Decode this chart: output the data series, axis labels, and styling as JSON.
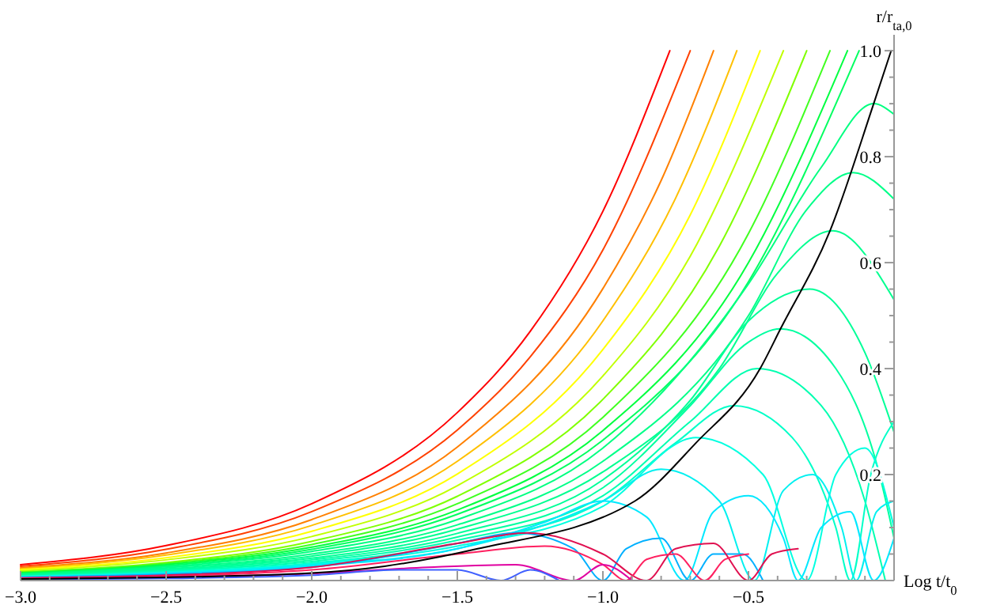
{
  "chart_data": {
    "type": "line",
    "xlabel": "Log t/t$_{0}$",
    "ylabel": "r/r$_{ta,0}$",
    "xlim": [
      -3.0,
      0.0
    ],
    "ylim": [
      0,
      1.03
    ],
    "xticks": [
      {
        "value": -3.0,
        "label": "−3.0"
      },
      {
        "value": -2.5,
        "label": "−2.5"
      },
      {
        "value": -2.0,
        "label": "−2.0"
      },
      {
        "value": -1.5,
        "label": "−1.5"
      },
      {
        "value": -1.0,
        "label": "−1.0"
      },
      {
        "value": -0.5,
        "label": "−0.5"
      },
      {
        "value": -2.9,
        "label": null
      },
      {
        "value": -2.8,
        "label": null
      },
      {
        "value": -2.7,
        "label": null
      },
      {
        "value": -2.6,
        "label": null
      },
      {
        "value": -2.4,
        "label": null
      },
      {
        "value": -2.3,
        "label": null
      },
      {
        "value": -2.2,
        "label": null
      },
      {
        "value": -2.1,
        "label": null
      },
      {
        "value": -1.9,
        "label": null
      },
      {
        "value": -1.8,
        "label": null
      },
      {
        "value": -1.7,
        "label": null
      },
      {
        "value": -1.6,
        "label": null
      },
      {
        "value": -1.4,
        "label": null
      },
      {
        "value": -1.3,
        "label": null
      },
      {
        "value": -1.2,
        "label": null
      },
      {
        "value": -1.1,
        "label": null
      },
      {
        "value": -0.9,
        "label": null
      },
      {
        "value": -0.8,
        "label": null
      },
      {
        "value": -0.7,
        "label": null
      },
      {
        "value": -0.6,
        "label": null
      },
      {
        "value": -0.4,
        "label": null
      },
      {
        "value": -0.3,
        "label": null
      },
      {
        "value": -0.2,
        "label": null
      },
      {
        "value": -0.1,
        "label": null
      }
    ],
    "yticks": [
      {
        "value": 0.2,
        "label": "0.2"
      },
      {
        "value": 0.4,
        "label": "0.4"
      },
      {
        "value": 0.6,
        "label": "0.6"
      },
      {
        "value": 0.8,
        "label": "0.8"
      },
      {
        "value": 1.0,
        "label": "1.0"
      },
      {
        "value": 0.05,
        "label": null
      },
      {
        "value": 0.1,
        "label": null
      },
      {
        "value": 0.15,
        "label": null
      },
      {
        "value": 0.25,
        "label": null
      },
      {
        "value": 0.3,
        "label": null
      },
      {
        "value": 0.35,
        "label": null
      },
      {
        "value": 0.45,
        "label": null
      },
      {
        "value": 0.5,
        "label": null
      },
      {
        "value": 0.55,
        "label": null
      },
      {
        "value": 0.65,
        "label": null
      },
      {
        "value": 0.7,
        "label": null
      },
      {
        "value": 0.75,
        "label": null
      },
      {
        "value": 0.85,
        "label": null
      },
      {
        "value": 0.9,
        "label": null
      },
      {
        "value": 0.95,
        "label": null
      }
    ],
    "marker": "none",
    "line_style": "solid",
    "grid": false,
    "series": [
      {
        "color": "#ff0000",
        "x": [
          -3,
          -2.5,
          -2,
          -1.5,
          -1.25,
          -1,
          -0.77
        ],
        "values": [
          0.03,
          0.066,
          0.145,
          0.317,
          0.47,
          0.697,
          1.0
        ]
      },
      {
        "color": "#ff4000",
        "x": [
          -3,
          -2.5,
          -2,
          -1.5,
          -1.25,
          -1,
          -0.7
        ],
        "values": [
          0.027,
          0.059,
          0.13,
          0.284,
          0.422,
          0.624,
          1.0
        ]
      },
      {
        "color": "#ff8000",
        "x": [
          -3,
          -2.5,
          -2,
          -1.5,
          -1,
          -0.8,
          -0.62
        ],
        "values": [
          0.024,
          0.052,
          0.115,
          0.252,
          0.551,
          0.755,
          1.0
        ]
      },
      {
        "color": "#ffc000",
        "x": [
          -3,
          -2.5,
          -2,
          -1.5,
          -1,
          -0.75,
          -0.54
        ],
        "values": [
          0.022,
          0.048,
          0.104,
          0.225,
          0.49,
          0.722,
          1.0
        ]
      },
      {
        "color": "#ffff00",
        "x": [
          -3,
          -2.5,
          -2,
          -1.5,
          -1,
          -0.7,
          -0.46
        ],
        "values": [
          0.02,
          0.043,
          0.093,
          0.201,
          0.436,
          0.69,
          1.0
        ]
      },
      {
        "color": "#c0ff00",
        "x": [
          -3,
          -2.5,
          -2,
          -1.5,
          -1,
          -0.7,
          -0.38
        ],
        "values": [
          0.018,
          0.039,
          0.083,
          0.179,
          0.386,
          0.612,
          1.0
        ]
      },
      {
        "color": "#80ff00",
        "x": [
          -3,
          -2.5,
          -2,
          -1.5,
          -1,
          -0.6,
          -0.3
        ],
        "values": [
          0.016,
          0.034,
          0.074,
          0.159,
          0.342,
          0.631,
          1.0
        ]
      },
      {
        "color": "#40ff20",
        "x": [
          -3,
          -2.5,
          -2,
          -1.5,
          -1,
          -0.5,
          -0.22
        ],
        "values": [
          0.015,
          0.032,
          0.068,
          0.145,
          0.308,
          0.655,
          1.0
        ]
      },
      {
        "color": "#00ff40",
        "x": [
          -3,
          -2.5,
          -2,
          -1.5,
          -1,
          -0.5,
          -0.16
        ],
        "values": [
          0.014,
          0.03,
          0.063,
          0.133,
          0.283,
          0.6,
          1.0
        ]
      },
      {
        "color": "#00ff60",
        "x": [
          -3,
          -2.5,
          -2,
          -1.5,
          -1,
          -0.5,
          -0.12
        ],
        "values": [
          0.013,
          0.028,
          0.059,
          0.125,
          0.265,
          0.564,
          1.0
        ]
      },
      {
        "color": "#00ff80",
        "x": [
          -3,
          -2.5,
          -2,
          -1.5,
          -1,
          -0.5,
          -0.25,
          -0.07,
          0
        ],
        "values": [
          0.012,
          0.026,
          0.055,
          0.115,
          0.25,
          0.56,
          0.78,
          0.9,
          0.88
        ]
      },
      {
        "color": "#00ff88",
        "x": [
          -3,
          -2.5,
          -2,
          -1.5,
          -1,
          -0.5,
          -0.3,
          -0.14,
          0
        ],
        "values": [
          0.011,
          0.024,
          0.05,
          0.105,
          0.225,
          0.5,
          0.7,
          0.77,
          0.72
        ]
      },
      {
        "color": "#00ff90",
        "x": [
          -3,
          -2.5,
          -2,
          -1.5,
          -1,
          -0.6,
          -0.4,
          -0.21,
          0
        ],
        "values": [
          0.01,
          0.022,
          0.046,
          0.097,
          0.205,
          0.4,
          0.58,
          0.66,
          0.53
        ]
      },
      {
        "color": "#00ff98",
        "x": [
          -3,
          -2.5,
          -2,
          -1.5,
          -1,
          -0.7,
          -0.5,
          -0.29,
          -0.1,
          0
        ],
        "values": [
          0.009,
          0.02,
          0.042,
          0.089,
          0.19,
          0.34,
          0.49,
          0.55,
          0.43,
          0.28
        ]
      },
      {
        "color": "#00ffa0",
        "x": [
          -3,
          -2.5,
          -2,
          -1.5,
          -1,
          -0.7,
          -0.5,
          -0.39,
          -0.2,
          -0.05,
          0
        ],
        "values": [
          0.009,
          0.019,
          0.039,
          0.082,
          0.175,
          0.33,
          0.45,
          0.475,
          0.4,
          0.2,
          0.08
        ]
      },
      {
        "color": "#00ffb0",
        "x": [
          -3,
          -2.5,
          -2,
          -1.5,
          -1,
          -0.7,
          -0.47,
          -0.25,
          -0.1,
          -0.03
        ],
        "values": [
          0.008,
          0.018,
          0.036,
          0.076,
          0.16,
          0.3,
          0.4,
          0.33,
          0.15,
          0
        ]
      },
      {
        "color": "#00ffc8",
        "x": [
          -3,
          -2.5,
          -2,
          -1.5,
          -1,
          -0.75,
          -0.55,
          -0.35,
          -0.2,
          -0.15,
          -0.08,
          0
        ],
        "values": [
          0.008,
          0.016,
          0.033,
          0.07,
          0.15,
          0.26,
          0.33,
          0.27,
          0.1,
          0,
          0.2,
          0.3
        ]
      },
      {
        "color": "#00ffe0",
        "x": [
          -3,
          -2.5,
          -2,
          -1.5,
          -1,
          -0.68,
          -0.45,
          -0.3,
          -0.2,
          -0.1,
          0
        ],
        "values": [
          0.007,
          0.015,
          0.031,
          0.065,
          0.14,
          0.27,
          0.2,
          0,
          0.2,
          0.25,
          0.1
        ]
      },
      {
        "color": "#00f0f0",
        "x": [
          -3,
          -2.5,
          -2,
          -1.5,
          -1,
          -0.8,
          -0.6,
          -0.48,
          -0.38,
          -0.28,
          -0.18,
          -0.13,
          -0.06,
          0
        ],
        "values": [
          0.007,
          0.014,
          0.029,
          0.06,
          0.15,
          0.21,
          0.15,
          0,
          0.17,
          0.2,
          0.1,
          0,
          0.13,
          0.15
        ]
      },
      {
        "color": "#00e8ff",
        "x": [
          -3,
          -2.5,
          -2,
          -1.5,
          -1.2,
          -1,
          -0.85,
          -0.72,
          -0.62,
          -0.5,
          -0.38,
          -0.33,
          -0.25,
          -0.15,
          -0.07,
          0
        ],
        "values": [
          0.006,
          0.013,
          0.027,
          0.06,
          0.11,
          0.15,
          0.12,
          0,
          0.13,
          0.16,
          0.08,
          0,
          0.1,
          0.13,
          0,
          0.08
        ]
      },
      {
        "color": "#00b0ff",
        "x": [
          -3,
          -2.5,
          -2,
          -1.5,
          -1.3,
          -1.1,
          -1,
          -0.92,
          -0.8,
          -0.7,
          -0.62,
          -0.52,
          -0.45
        ],
        "values": [
          0.006,
          0.012,
          0.025,
          0.07,
          0.09,
          0.06,
          0,
          0.06,
          0.08,
          0,
          0.05,
          0.05,
          0
        ]
      },
      {
        "color": "#e01050",
        "x": [
          -3,
          -2.5,
          -2,
          -1.5,
          -1.26,
          -1,
          -0.85,
          -0.75,
          -0.62,
          -0.5,
          -0.42,
          -0.33
        ],
        "values": [
          0.005,
          0.01,
          0.025,
          0.07,
          0.09,
          0.05,
          0,
          0.06,
          0.07,
          0,
          0.05,
          0.06
        ]
      },
      {
        "color": "#ff2060",
        "x": [
          -3,
          -2.5,
          -2,
          -1.5,
          -1.2,
          -1,
          -0.92,
          -0.85,
          -0.75,
          -0.65,
          -0.58,
          -0.5
        ],
        "values": [
          0.004,
          0.008,
          0.02,
          0.05,
          0.065,
          0.03,
          0,
          0.04,
          0.05,
          0,
          0.04,
          0.05
        ]
      },
      {
        "color": "#e000a0",
        "x": [
          -3,
          -2.5,
          -2,
          -1.6,
          -1.3,
          -1.1,
          -1,
          -0.9
        ],
        "values": [
          0.003,
          0.006,
          0.013,
          0.025,
          0.03,
          0,
          0.03,
          0
        ]
      },
      {
        "color": "#4060ff",
        "x": [
          -3,
          -2.5,
          -2,
          -1.7,
          -1.5,
          -1.35,
          -1.25,
          -1.15
        ],
        "values": [
          0.002,
          0.004,
          0.01,
          0.02,
          0.02,
          0,
          0.02,
          0
        ]
      },
      {
        "color": "#000000",
        "x": [
          -3,
          -2.5,
          -2,
          -1.75,
          -1.43,
          -0.89,
          -0.68,
          -0.46,
          -0.39,
          -0.22,
          -0.07,
          -0.01
        ],
        "values": [
          0.003,
          0.006,
          0.014,
          0.027,
          0.06,
          0.15,
          0.26,
          0.4,
          0.475,
          0.66,
          0.9,
          1.0
        ]
      }
    ]
  }
}
